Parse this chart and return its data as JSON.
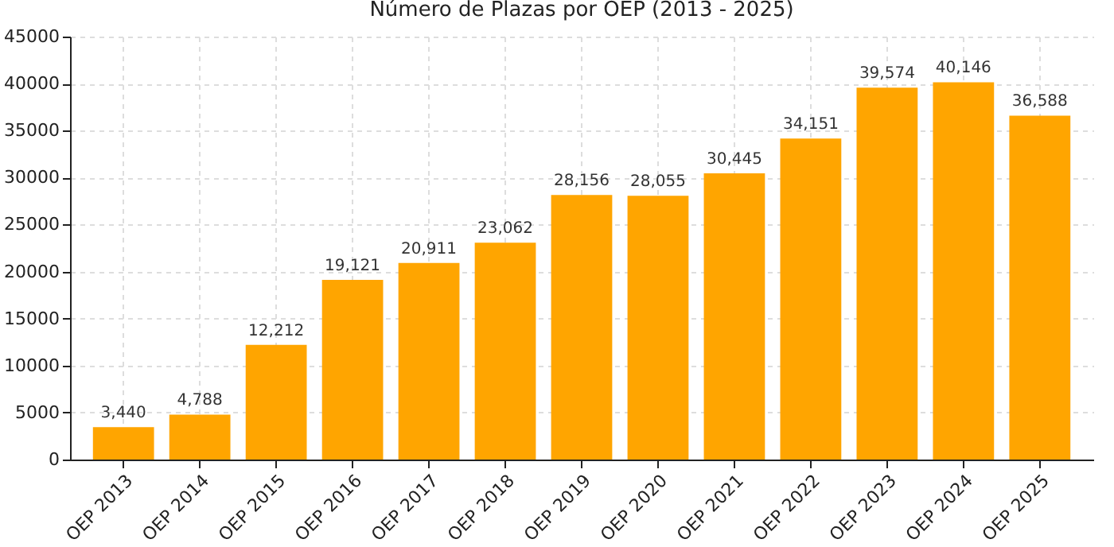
{
  "chart_data": {
    "type": "bar",
    "title": "Número de Plazas por OEP (2013 - 2025)",
    "categories": [
      "OEP 2013",
      "OEP 2014",
      "OEP 2015",
      "OEP 2016",
      "OEP 2017",
      "OEP 2018",
      "OEP 2019",
      "OEP 2020",
      "OEP 2021",
      "OEP 2022",
      "OEP 2023",
      "OEP 2024",
      "OEP 2025"
    ],
    "values": [
      3440,
      4788,
      12212,
      19121,
      20911,
      23062,
      28156,
      28055,
      30445,
      34151,
      39574,
      40146,
      36588
    ],
    "value_labels": [
      "3,440",
      "4,788",
      "12,212",
      "19,121",
      "20,911",
      "23,062",
      "28,156",
      "28,055",
      "30,445",
      "34,151",
      "39,574",
      "40,146",
      "36,588"
    ],
    "color": "#ffa500",
    "ylim": [
      0,
      45000
    ],
    "yticks": [
      0,
      5000,
      10000,
      15000,
      20000,
      25000,
      30000,
      35000,
      40000,
      45000
    ],
    "grid": true
  }
}
